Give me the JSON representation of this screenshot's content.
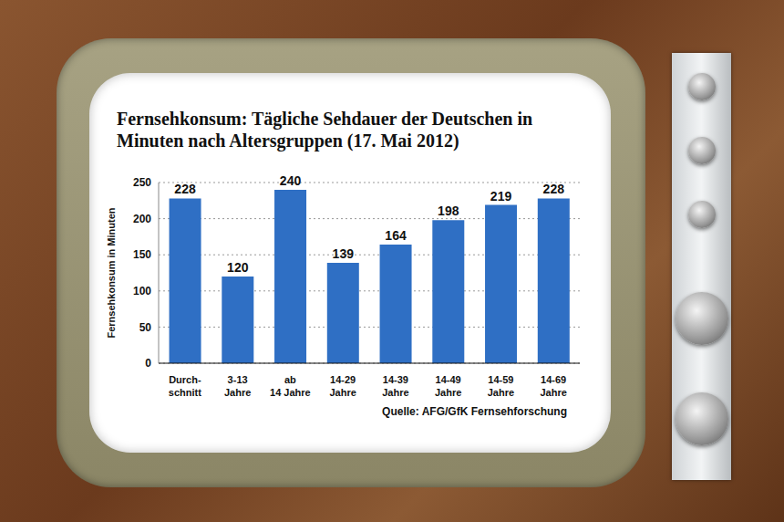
{
  "chart_data": {
    "type": "bar",
    "title": "Fernsehkonsum: Tägliche Sehdauer der Deutschen in Minuten nach Altersgruppen (17. Mai 2012)",
    "ylabel": "Fernsehkonsum in Minuten",
    "source": "Quelle: AFG/GfK Fernsehforschung",
    "categories": [
      "Durch-schnitt",
      "3-13 Jahre",
      "ab 14 Jahre",
      "14-29 Jahre",
      "14-39 Jahre",
      "14-49 Jahre",
      "14-59 Jahre",
      "14-69 Jahre"
    ],
    "values": [
      228,
      120,
      240,
      139,
      164,
      198,
      219,
      228
    ],
    "color": "#2f6fc4",
    "ylim": [
      0,
      250
    ],
    "yticks": [
      0,
      50,
      100,
      150,
      200,
      250
    ],
    "grid": true,
    "data_labels": true
  }
}
